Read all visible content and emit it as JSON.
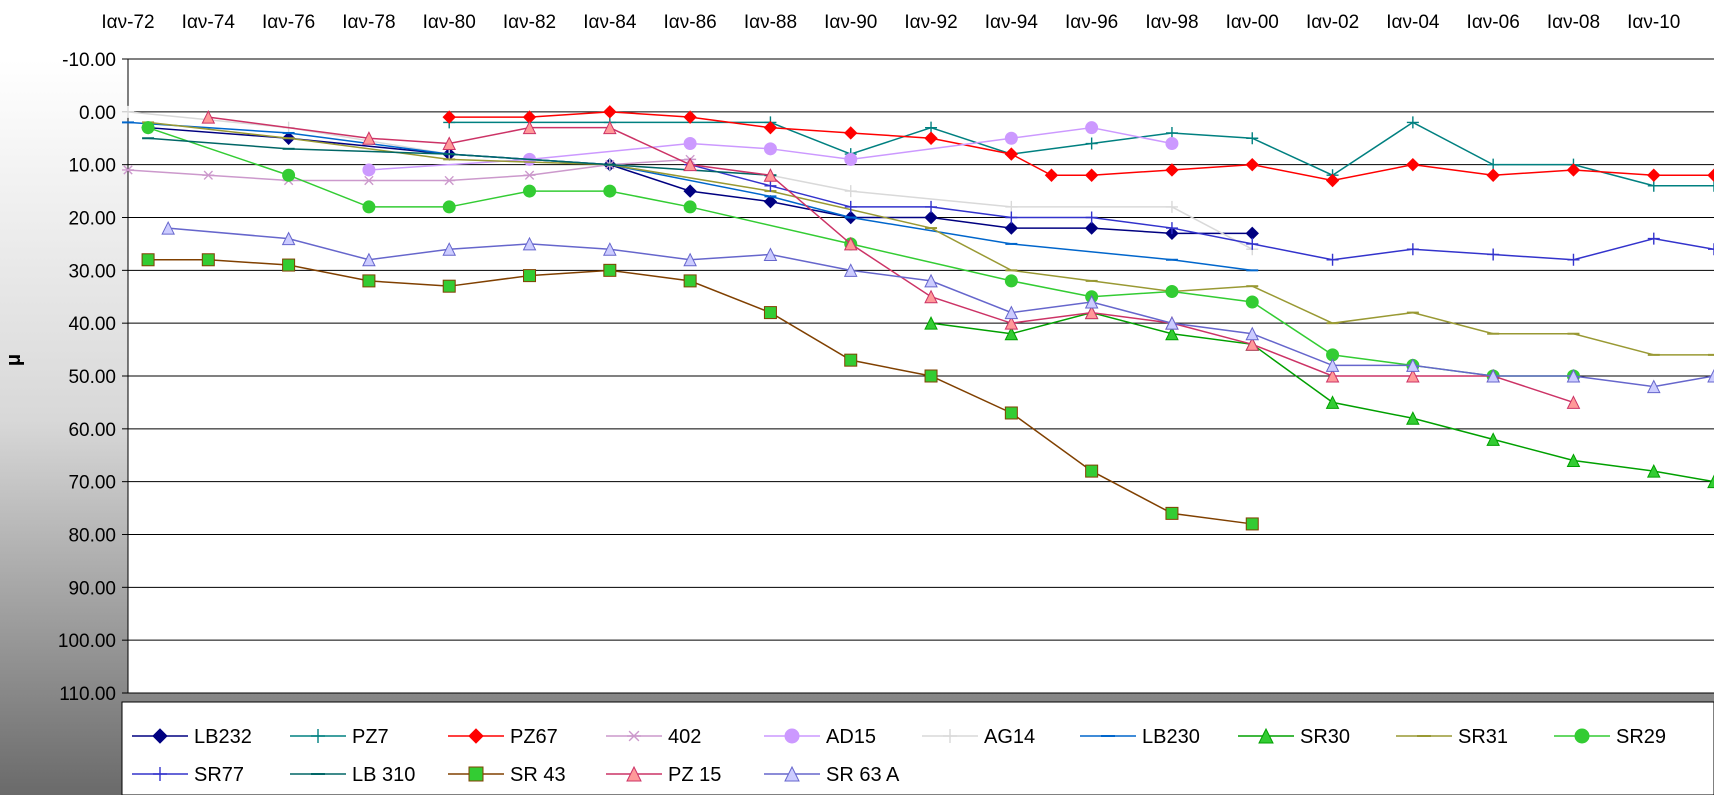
{
  "chart_data": {
    "type": "line",
    "title": "",
    "xlabel": "",
    "ylabel": "μ",
    "ylim": [
      -10,
      110
    ],
    "y_reversed": true,
    "y_ticks": [
      "-10.00",
      "0.00",
      "10.00",
      "20.00",
      "30.00",
      "40.00",
      "50.00",
      "60.00",
      "70.00",
      "80.00",
      "90.00",
      "100.00",
      "110.00"
    ],
    "x_range": [
      1972.0,
      2011.5
    ],
    "x_ticks": [
      "Ιαν-72",
      "Ιαν-74",
      "Ιαν-76",
      "Ιαν-78",
      "Ιαν-80",
      "Ιαν-82",
      "Ιαν-84",
      "Ιαν-86",
      "Ιαν-88",
      "Ιαν-90",
      "Ιαν-92",
      "Ιαν-94",
      "Ιαν-96",
      "Ιαν-98",
      "Ιαν-00",
      "Ιαν-02",
      "Ιαν-04",
      "Ιαν-06",
      "Ιαν-08",
      "Ιαν-10"
    ],
    "grid": true,
    "legend": "bottom",
    "series": [
      {
        "name": "LB232",
        "color": "#000080",
        "marker": "diamond",
        "x": [
          1972.5,
          1976,
          1980,
          1984,
          1986,
          1988,
          1990,
          1992,
          1994,
          1996,
          1998,
          2000
        ],
        "y": [
          3,
          5,
          8,
          10,
          15,
          17,
          20,
          20,
          22,
          22,
          23,
          23
        ]
      },
      {
        "name": "PZ7",
        "color": "#008080",
        "marker": "plus",
        "x": [
          1980,
          1984,
          1988,
          1990,
          1992,
          1994,
          1996,
          1998,
          2000,
          2002,
          2004,
          2006,
          2008,
          2010,
          2011.5
        ],
        "y": [
          2,
          2,
          2,
          8,
          3,
          8,
          6,
          4,
          5,
          12,
          2,
          10,
          10,
          14,
          14
        ]
      },
      {
        "name": "PZ67",
        "color": "#ff0000",
        "marker": "diamond",
        "x": [
          1980,
          1982,
          1984,
          1986,
          1988,
          1990,
          1992,
          1994,
          1995,
          1996,
          1998,
          2000,
          2002,
          2004,
          2006,
          2008,
          2010,
          2011.5
        ],
        "y": [
          1,
          1,
          0,
          1,
          3,
          4,
          5,
          8,
          12,
          12,
          11,
          10,
          13,
          10,
          12,
          11,
          12,
          12
        ]
      },
      {
        "name": "402",
        "color": "#cc99cc",
        "marker": "star",
        "x": [
          1972,
          1974,
          1976,
          1978,
          1980,
          1982,
          1984,
          1986
        ],
        "y": [
          11,
          12,
          13,
          13,
          13,
          12,
          10,
          9
        ]
      },
      {
        "name": "AD15",
        "color": "#cc99ff",
        "marker": "circle",
        "x": [
          1978,
          1982,
          1986,
          1988,
          1990,
          1994,
          1996,
          1998
        ],
        "y": [
          11,
          9,
          6,
          7,
          9,
          5,
          3,
          6
        ]
      },
      {
        "name": "AG14",
        "color": "#d9d9d9",
        "marker": "plus",
        "x": [
          1972,
          1976,
          1980,
          1984,
          1988,
          1990,
          1994,
          1998,
          2000
        ],
        "y": [
          0,
          3,
          8,
          10,
          12,
          15,
          18,
          18,
          26
        ]
      },
      {
        "name": "LB230",
        "color": "#0066cc",
        "marker": "dash",
        "x": [
          1972,
          1976,
          1980,
          1984,
          1988,
          1990,
          1994,
          1998,
          2000
        ],
        "y": [
          2,
          4,
          8,
          10,
          16,
          20,
          25,
          28,
          30
        ]
      },
      {
        "name": "SR30",
        "color": "#00a000",
        "marker": "triangle",
        "x": [
          1992,
          1994,
          1996,
          1998,
          2000,
          2002,
          2004,
          2006,
          2008,
          2010,
          2011.5
        ],
        "y": [
          40,
          42,
          38,
          42,
          44,
          55,
          58,
          62,
          66,
          68,
          70
        ]
      },
      {
        "name": "SR31",
        "color": "#999933",
        "marker": "dash",
        "x": [
          1972.5,
          1976,
          1980,
          1984,
          1988,
          1992,
          1994,
          1996,
          1998,
          2000,
          2002,
          2004,
          2006,
          2008,
          2010,
          2011.5
        ],
        "y": [
          2,
          5,
          9,
          10,
          15,
          22,
          30,
          32,
          34,
          33,
          40,
          38,
          42,
          42,
          46,
          46
        ]
      },
      {
        "name": "SR29",
        "color": "#33cc33",
        "marker": "circle",
        "x": [
          1972.5,
          1976,
          1978,
          1980,
          1982,
          1984,
          1986,
          1990,
          1994,
          1996,
          1998,
          2000,
          2002,
          2004,
          2006,
          2008
        ],
        "y": [
          3,
          12,
          18,
          18,
          15,
          15,
          18,
          25,
          32,
          35,
          34,
          36,
          46,
          48,
          50,
          50
        ]
      },
      {
        "name": "SR77",
        "color": "#3333cc",
        "marker": "plus",
        "x": [
          1986,
          1988,
          1990,
          1992,
          1994,
          1996,
          1998,
          2000,
          2002,
          2004,
          2006,
          2008,
          2010,
          2011.5
        ],
        "y": [
          10,
          14,
          18,
          18,
          20,
          20,
          22,
          25,
          28,
          26,
          27,
          28,
          24,
          26
        ]
      },
      {
        "name": "LB 310",
        "color": "#006666",
        "marker": "dash",
        "x": [
          1972.5,
          1976,
          1980,
          1984,
          1988
        ],
        "y": [
          5,
          7,
          8,
          10,
          12
        ]
      },
      {
        "name": "SR 43",
        "color": "#804000",
        "marker": "square",
        "x": [
          1972.5,
          1974,
          1976,
          1978,
          1980,
          1982,
          1984,
          1986,
          1988,
          1990,
          1992,
          1994,
          1996,
          1998,
          2000
        ],
        "y": [
          28,
          28,
          29,
          32,
          33,
          31,
          30,
          32,
          38,
          47,
          50,
          57,
          68,
          76,
          78
        ]
      },
      {
        "name": "PZ 15",
        "color": "#cc3366",
        "marker": "triangle",
        "x": [
          1974,
          1978,
          1980,
          1982,
          1984,
          1986,
          1988,
          1990,
          1992,
          1994,
          1996,
          1998,
          2000,
          2002,
          2004,
          2006,
          2008
        ],
        "y": [
          1,
          5,
          6,
          3,
          3,
          10,
          12,
          25,
          35,
          40,
          38,
          40,
          44,
          50,
          50,
          50,
          55
        ]
      },
      {
        "name": "SR 63 A",
        "color": "#6666cc",
        "marker": "triangle",
        "x": [
          1973,
          1976,
          1978,
          1980,
          1982,
          1984,
          1986,
          1988,
          1990,
          1992,
          1994,
          1996,
          1998,
          2000,
          2002,
          2004,
          2006,
          2008,
          2010,
          2011.5
        ],
        "y": [
          22,
          24,
          28,
          26,
          25,
          26,
          28,
          27,
          30,
          32,
          38,
          36,
          40,
          42,
          48,
          48,
          50,
          50,
          52,
          50
        ]
      }
    ]
  }
}
